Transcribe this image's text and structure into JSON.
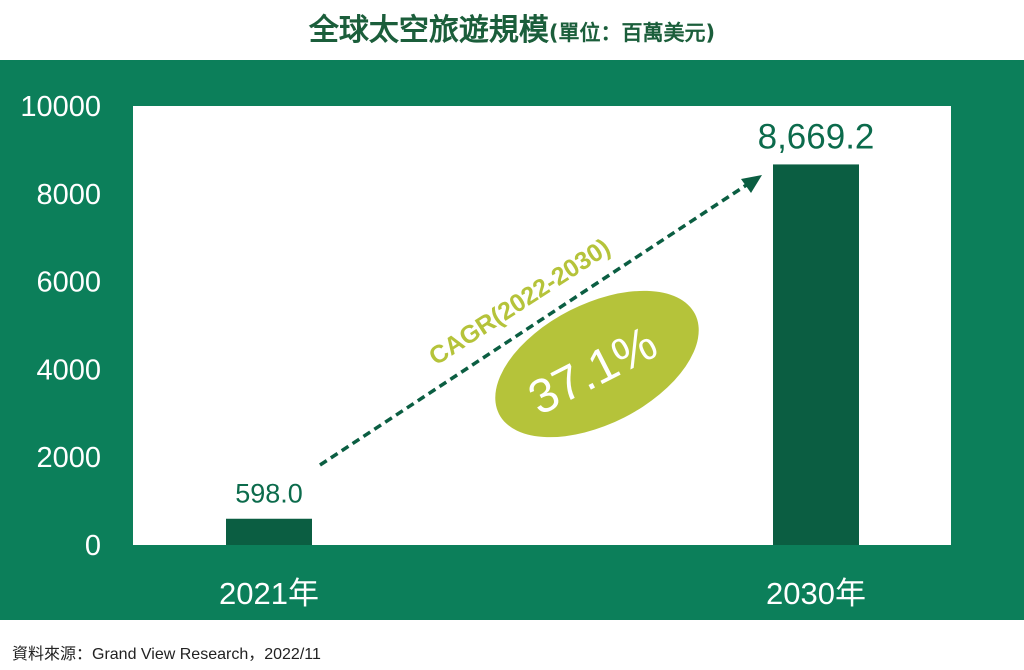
{
  "title": {
    "main": "全球太空旅遊規模",
    "unit": "(單位：百萬美元)"
  },
  "source": "資料來源：Grand View Research，2022/11",
  "colors": {
    "panel": "#0c7f5a",
    "bar": "#0b5e42",
    "label": "#0c6b4c",
    "accent": "#b5c33a"
  },
  "annotation": {
    "label": "CAGR(2022-2030)",
    "value": "37.1%"
  },
  "chart_data": {
    "type": "bar",
    "categories": [
      "2021年",
      "2030年"
    ],
    "values": [
      598.0,
      8669.2
    ],
    "data_labels": [
      "598.0",
      "8,669.2"
    ],
    "ylim": [
      0,
      10000
    ],
    "yticks": [
      0,
      2000,
      4000,
      6000,
      8000,
      10000
    ],
    "grid": false,
    "legend": "none"
  }
}
